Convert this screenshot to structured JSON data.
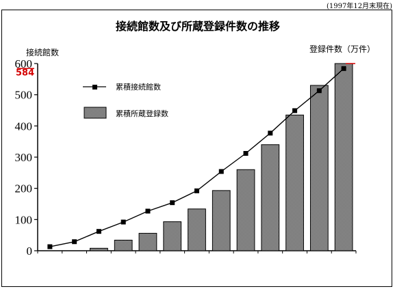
{
  "note": "(1997年12月末現在)",
  "chart_data": {
    "type": "bar",
    "title": "接続館数及び所蔵登録件数の推移",
    "y_left_label": "接続館数",
    "y_right_label": "登録件数（万件）",
    "ylim": [
      0,
      600
    ],
    "yticks": [
      "0",
      "100",
      "200",
      "300",
      "400",
      "500",
      "600"
    ],
    "highlight_value": 584,
    "highlight_label": "584",
    "series": [
      {
        "name": "累積接続館数",
        "kind": "line",
        "values": [
          13,
          29,
          62,
          92,
          127,
          154,
          192,
          254,
          312,
          377,
          449,
          513,
          584
        ]
      },
      {
        "name": "累積所蔵登録数",
        "kind": "bar",
        "values": [
          0,
          0,
          8,
          34,
          56,
          93,
          134,
          193,
          260,
          340,
          435,
          530,
          600
        ]
      }
    ]
  }
}
